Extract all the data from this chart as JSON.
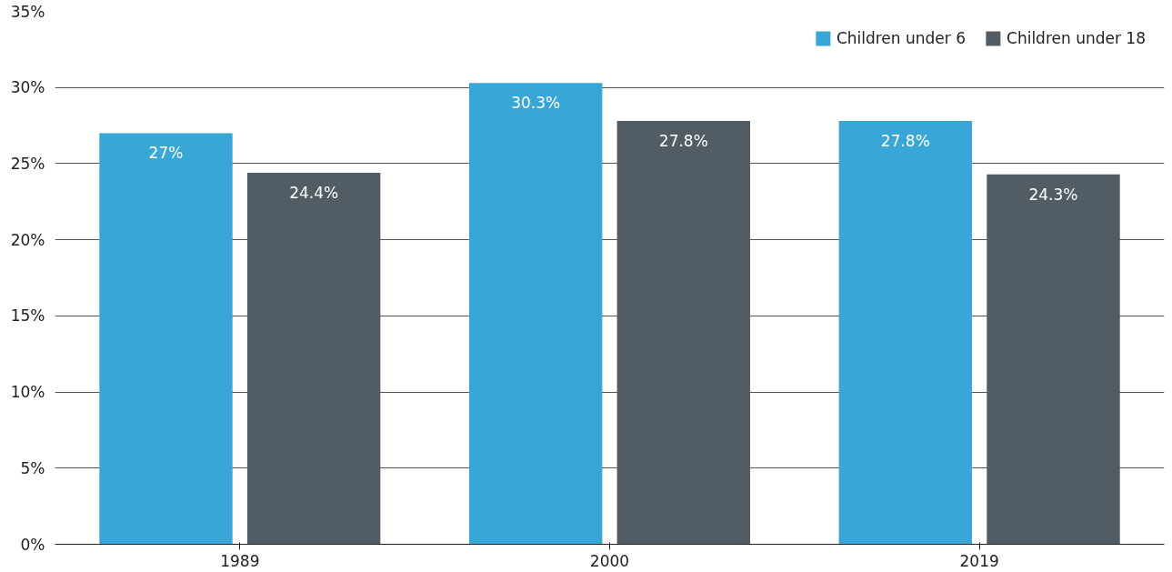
{
  "chart_data": {
    "type": "bar",
    "categories": [
      "1989",
      "2000",
      "2019"
    ],
    "series": [
      {
        "name": "Children under 6",
        "color": "#38a6d6",
        "values": [
          27,
          30.3,
          27.8
        ],
        "value_labels": [
          "27%",
          "30.3%",
          "27.8%"
        ]
      },
      {
        "name": "Children under 18",
        "color": "#515c65",
        "values": [
          24.4,
          27.8,
          24.3
        ],
        "value_labels": [
          "24.4%",
          "27.8%",
          "24.3%"
        ]
      }
    ],
    "ylim": [
      0,
      35
    ],
    "yticks": [
      {
        "value": 0,
        "label": "0%"
      },
      {
        "value": 5,
        "label": "5%"
      },
      {
        "value": 10,
        "label": "10%"
      },
      {
        "value": 15,
        "label": "15%"
      },
      {
        "value": 20,
        "label": "20%"
      },
      {
        "value": 25,
        "label": "25%"
      },
      {
        "value": 30,
        "label": "30%"
      },
      {
        "value": 35,
        "label": "35%"
      }
    ],
    "grid": "y",
    "legend": "top right"
  }
}
